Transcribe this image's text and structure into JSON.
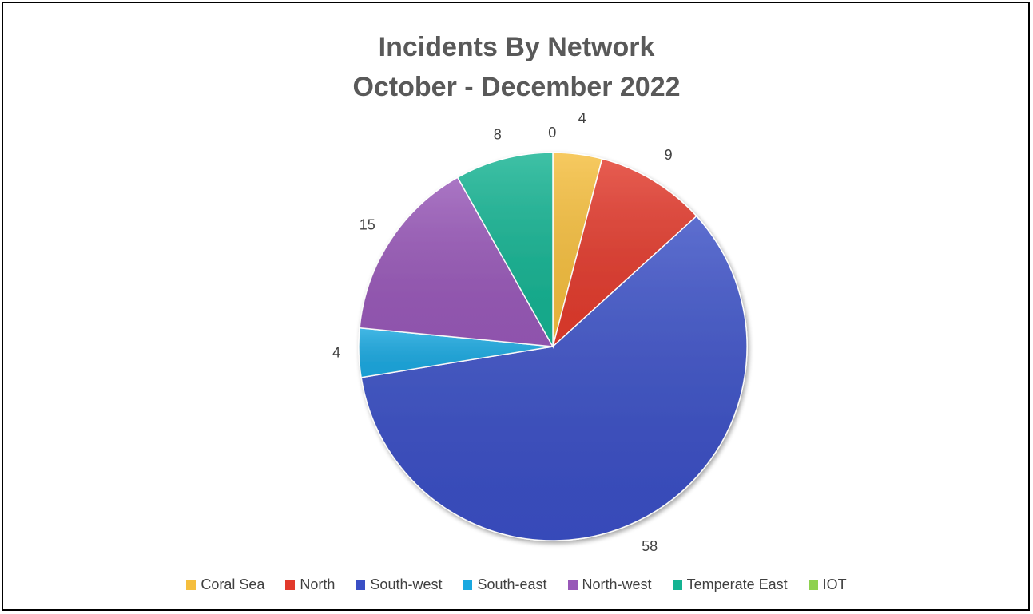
{
  "chart_data": {
    "type": "pie",
    "title": "Incidents By Network",
    "subtitle": "October - December 2022",
    "legend_position": "bottom",
    "slices": [
      {
        "label": "Coral Sea",
        "value": 4,
        "color": "#F5BE3D"
      },
      {
        "label": "North",
        "value": 9,
        "color": "#E23A2C"
      },
      {
        "label": "South-west",
        "value": 58,
        "color": "#3A4FC5"
      },
      {
        "label": "South-east",
        "value": 4,
        "color": "#1AA8E0"
      },
      {
        "label": "North-west",
        "value": 15,
        "color": "#9858B8"
      },
      {
        "label": "Temperate East",
        "value": 8,
        "color": "#14B392"
      },
      {
        "label": "IOT",
        "value": 0,
        "color": "#8ED14F"
      }
    ]
  }
}
